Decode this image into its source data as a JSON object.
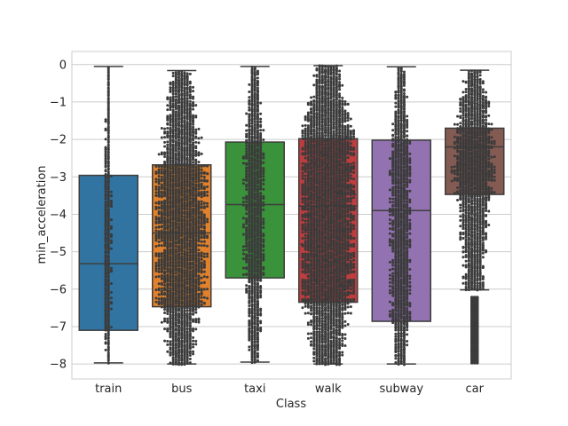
{
  "chart_data": {
    "type": "box",
    "overlay": "swarm",
    "xlabel": "Class",
    "ylabel": "min_acceleration",
    "ylim": [
      -8.4,
      0.35
    ],
    "yticks": [
      0,
      -1,
      -2,
      -3,
      -4,
      -5,
      -6,
      -7,
      -8
    ],
    "ytick_labels": [
      "0",
      "−1",
      "−2",
      "−3",
      "−4",
      "−5",
      "−6",
      "−7",
      "−8"
    ],
    "grid": true,
    "categories": [
      "train",
      "bus",
      "taxi",
      "walk",
      "subway",
      "car"
    ],
    "boxes": [
      {
        "category": "train",
        "whisker_low": -7.97,
        "q1": -7.1,
        "median": -5.32,
        "q3": -2.96,
        "whisker_high": -0.05,
        "color": "#3274a1",
        "density": 0.12,
        "outliers": []
      },
      {
        "category": "bus",
        "whisker_low": -8.0,
        "q1": -6.47,
        "median": -4.5,
        "q3": -2.68,
        "whisker_high": -0.16,
        "color": "#e1812c",
        "density": 0.85,
        "outliers": []
      },
      {
        "category": "taxi",
        "whisker_low": -7.95,
        "q1": -5.7,
        "median": -3.74,
        "q3": -2.07,
        "whisker_high": -0.05,
        "color": "#3a923a",
        "density": 0.35,
        "outliers": []
      },
      {
        "category": "walk",
        "whisker_low": -8.0,
        "q1": -6.35,
        "median": -3.78,
        "q3": -1.98,
        "whisker_high": -0.03,
        "color": "#c03d3e",
        "density": 1.0,
        "outliers": []
      },
      {
        "category": "subway",
        "whisker_low": -8.0,
        "q1": -6.86,
        "median": -3.9,
        "q3": -2.02,
        "whisker_high": -0.06,
        "color": "#9372b2",
        "density": 0.35,
        "outliers": []
      },
      {
        "category": "car",
        "whisker_low": -6.02,
        "q1": -3.47,
        "median": -2.2,
        "q3": -1.7,
        "whisker_high": -0.15,
        "color": "#845b53",
        "density": 0.7,
        "outliers_range": [
          -7.97,
          -6.2
        ]
      }
    ]
  }
}
